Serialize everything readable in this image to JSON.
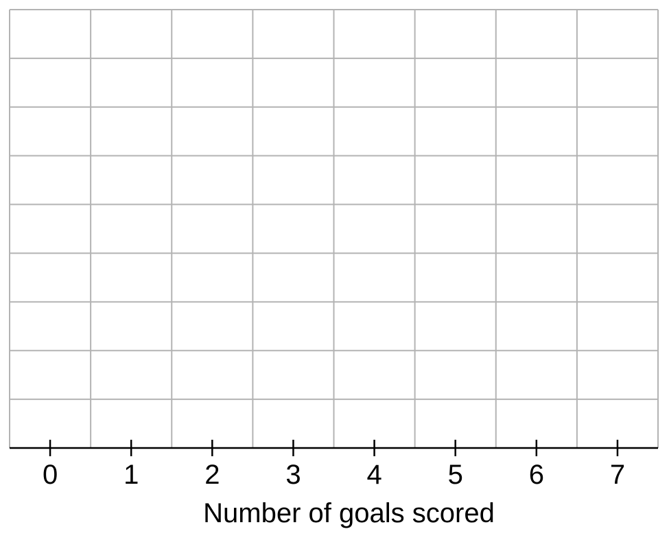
{
  "chart_data": {
    "type": "dot",
    "title": "",
    "xlabel": "Number of goals scored",
    "ylabel": "",
    "categories": [
      "0",
      "1",
      "2",
      "3",
      "4",
      "5",
      "6",
      "7"
    ],
    "x_ticks": [
      0,
      1,
      2,
      3,
      4,
      5,
      6,
      7
    ],
    "xlim": [
      -0.5,
      7.5
    ],
    "grid_rows": 9,
    "grid": true,
    "series": [],
    "colors": {
      "grid": "#b3b3b3",
      "axis": "#000000",
      "text": "#000000"
    }
  }
}
